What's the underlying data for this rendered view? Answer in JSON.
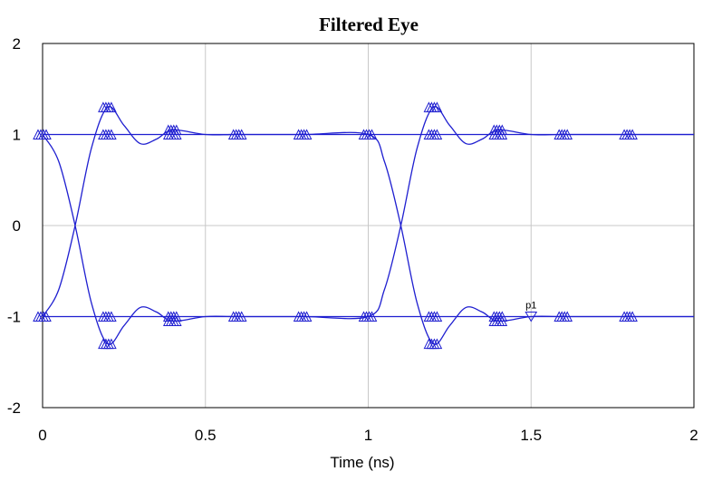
{
  "chart_data": {
    "type": "line",
    "title": "Filtered Eye",
    "xlabel": "Time (ns)",
    "ylabel": "",
    "xlim": [
      0,
      2
    ],
    "ylim": [
      -2,
      2
    ],
    "xticks": [
      0,
      0.5,
      1,
      1.5,
      2
    ],
    "xtick_labels": [
      "0",
      "0.5",
      "1",
      "1.5",
      "2"
    ],
    "yticks": [
      -2,
      -1,
      0,
      1,
      2
    ],
    "ytick_labels": [
      "-2",
      "-1",
      "0",
      "1",
      "2"
    ],
    "grid": true,
    "series_color": "#1f1fd0",
    "series": [
      {
        "x": [
          0,
          0.05,
          0.1,
          0.15,
          0.2,
          0.25,
          0.3,
          0.35,
          0.4,
          0.5,
          0.6,
          0.8,
          1.0,
          1.05,
          1.1,
          1.15,
          1.2,
          1.25,
          1.3,
          1.35,
          1.4,
          1.5,
          1.6,
          1.8,
          2.0
        ],
        "y": [
          1.0,
          0.7,
          0.0,
          -0.85,
          -1.3,
          -1.1,
          -0.9,
          -0.95,
          -1.05,
          -1.0,
          -1.0,
          -1.0,
          -1.0,
          -0.7,
          0.0,
          0.85,
          1.3,
          1.1,
          0.9,
          0.95,
          1.05,
          1.0,
          1.0,
          1.0,
          1.0
        ]
      },
      {
        "x": [
          0,
          0.05,
          0.1,
          0.15,
          0.2,
          0.25,
          0.3,
          0.35,
          0.4,
          0.5,
          0.6,
          0.8,
          1.0,
          1.05,
          1.1,
          1.15,
          1.2,
          1.25,
          1.3,
          1.35,
          1.4,
          1.5,
          1.6,
          1.8,
          2.0
        ],
        "y": [
          -1.0,
          -0.7,
          0.0,
          0.85,
          1.3,
          1.1,
          0.9,
          0.95,
          1.05,
          1.0,
          1.0,
          1.0,
          1.0,
          0.7,
          0.0,
          -0.85,
          -1.3,
          -1.1,
          -0.9,
          -0.95,
          -1.05,
          -1.0,
          -1.0,
          -1.0,
          -1.0
        ]
      },
      {
        "x": [
          0,
          0.2,
          0.4,
          0.6,
          0.8,
          1.0,
          1.2,
          1.4,
          1.6,
          1.8,
          2.0
        ],
        "y": [
          1.0,
          1.0,
          1.0,
          1.0,
          1.0,
          1.0,
          1.0,
          1.0,
          1.0,
          1.0,
          1.0
        ]
      },
      {
        "x": [
          0,
          0.2,
          0.4,
          0.6,
          0.8,
          1.0,
          1.2,
          1.4,
          1.6,
          1.8,
          2.0
        ],
        "y": [
          -1.0,
          -1.0,
          -1.0,
          -1.0,
          -1.0,
          -1.0,
          -1.0,
          -1.0,
          -1.0,
          -1.0,
          -1.0
        ]
      }
    ],
    "markers": [
      {
        "x": 0.0,
        "y": 1.0
      },
      {
        "x": 0.0,
        "y": -1.0
      },
      {
        "x": 0.2,
        "y": 1.3
      },
      {
        "x": 0.2,
        "y": 1.0
      },
      {
        "x": 0.2,
        "y": -1.0
      },
      {
        "x": 0.2,
        "y": -1.3
      },
      {
        "x": 0.4,
        "y": 1.05
      },
      {
        "x": 0.4,
        "y": 1.0
      },
      {
        "x": 0.4,
        "y": -1.0
      },
      {
        "x": 0.4,
        "y": -1.05
      },
      {
        "x": 0.6,
        "y": 1.0
      },
      {
        "x": 0.6,
        "y": -1.0
      },
      {
        "x": 0.8,
        "y": 1.0
      },
      {
        "x": 0.8,
        "y": -1.0
      },
      {
        "x": 1.0,
        "y": 1.0
      },
      {
        "x": 1.0,
        "y": -1.0
      },
      {
        "x": 1.2,
        "y": 1.3
      },
      {
        "x": 1.2,
        "y": 1.0
      },
      {
        "x": 1.2,
        "y": -1.0
      },
      {
        "x": 1.2,
        "y": -1.3
      },
      {
        "x": 1.4,
        "y": 1.05
      },
      {
        "x": 1.4,
        "y": 1.0
      },
      {
        "x": 1.4,
        "y": -1.0
      },
      {
        "x": 1.4,
        "y": -1.05
      },
      {
        "x": 1.6,
        "y": 1.0
      },
      {
        "x": 1.6,
        "y": -1.0
      },
      {
        "x": 1.8,
        "y": 1.0
      },
      {
        "x": 1.8,
        "y": -1.0
      }
    ],
    "annotations": [
      {
        "text": "p1",
        "x": 1.5,
        "y": -1.0
      }
    ]
  }
}
